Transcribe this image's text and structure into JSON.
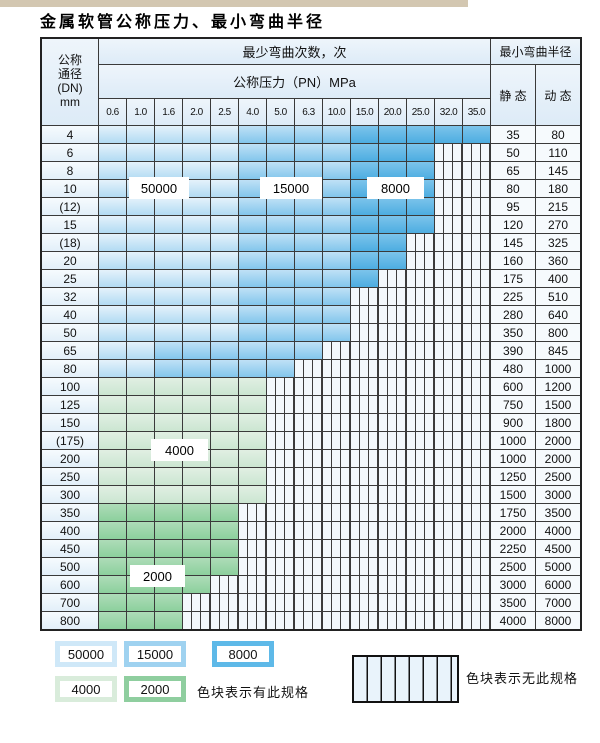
{
  "page_title": "金属软管公称压力、最小弯曲半径",
  "table": {
    "dn_header_lines": [
      "公称",
      "通径",
      "(DN)",
      "mm"
    ],
    "cycles_header": "最少弯曲次数，次",
    "pn_header": "公称压力（PN）MPa",
    "radius_header": "最小弯曲半径",
    "static_header": "静 态",
    "dynamic_header": "动 态",
    "pressures": [
      "0.6",
      "1.0",
      "1.6",
      "2.0",
      "2.5",
      "4.0",
      "5.0",
      "6.3",
      "10.0",
      "15.0",
      "20.0",
      "25.0",
      "32.0",
      "35.0"
    ],
    "cell_code_meaning": {
      "L": "50000次",
      "M": "15000次",
      "D": "8000次",
      "G": "4000次",
      "E": "2000次",
      "X": "无此规格"
    },
    "rows": [
      {
        "dn": "4",
        "cells": "LLLLLMMMMDDDDD",
        "static": "35",
        "dynamic": "80"
      },
      {
        "dn": "6",
        "cells": "LLLLLMMMMDDDXX",
        "static": "50",
        "dynamic": "110"
      },
      {
        "dn": "8",
        "cells": "LLLLLMMMMDDDXX",
        "static": "65",
        "dynamic": "145"
      },
      {
        "dn": "10",
        "cells": "LLLLLMMMMDDDXX",
        "static": "80",
        "dynamic": "180"
      },
      {
        "dn": "(12)",
        "cells": "LLLLLMMMMDDDXX",
        "static": "95",
        "dynamic": "215"
      },
      {
        "dn": "15",
        "cells": "LLLLLMMMMDDDXX",
        "static": "120",
        "dynamic": "270"
      },
      {
        "dn": "(18)",
        "cells": "LLLLLMMMMDDXXX",
        "static": "145",
        "dynamic": "325"
      },
      {
        "dn": "20",
        "cells": "LLLLLMMMMDDXXX",
        "static": "160",
        "dynamic": "360"
      },
      {
        "dn": "25",
        "cells": "LLLLLMMMMDXXXX",
        "static": "175",
        "dynamic": "400"
      },
      {
        "dn": "32",
        "cells": "LLLLLMMMMXXXXX",
        "static": "225",
        "dynamic": "510"
      },
      {
        "dn": "40",
        "cells": "LLLLLMMMMXXXXX",
        "static": "280",
        "dynamic": "640"
      },
      {
        "dn": "50",
        "cells": "LLLLLMMMMXXXXX",
        "static": "350",
        "dynamic": "800"
      },
      {
        "dn": "65",
        "cells": "LLMMMMMMXXXXXX",
        "static": "390",
        "dynamic": "845"
      },
      {
        "dn": "80",
        "cells": "LLMMMMMXXXXXXX",
        "static": "480",
        "dynamic": "1000"
      },
      {
        "dn": "100",
        "cells": "GGGGGGXXXXXXXX",
        "static": "600",
        "dynamic": "1200"
      },
      {
        "dn": "125",
        "cells": "GGGGGGXXXXXXXX",
        "static": "750",
        "dynamic": "1500"
      },
      {
        "dn": "150",
        "cells": "GGGGGGXXXXXXXX",
        "static": "900",
        "dynamic": "1800"
      },
      {
        "dn": "(175)",
        "cells": "GGGGGGXXXXXXXX",
        "static": "1000",
        "dynamic": "2000"
      },
      {
        "dn": "200",
        "cells": "GGGGGGXXXXXXXX",
        "static": "1000",
        "dynamic": "2000"
      },
      {
        "dn": "250",
        "cells": "GGGGGGXXXXXXXX",
        "static": "1250",
        "dynamic": "2500"
      },
      {
        "dn": "300",
        "cells": "GGGGGGXXXXXXXX",
        "static": "1500",
        "dynamic": "3000"
      },
      {
        "dn": "350",
        "cells": "EEEEEXXXXXXXXX",
        "static": "1750",
        "dynamic": "3500"
      },
      {
        "dn": "400",
        "cells": "EEEEEXXXXXXXXX",
        "static": "2000",
        "dynamic": "4000"
      },
      {
        "dn": "450",
        "cells": "EEEEEXXXXXXXXX",
        "static": "2250",
        "dynamic": "4500"
      },
      {
        "dn": "500",
        "cells": "EEEEEXXXXXXXXX",
        "static": "2500",
        "dynamic": "5000"
      },
      {
        "dn": "600",
        "cells": "EEEEXXXXXXXXXX",
        "static": "3000",
        "dynamic": "6000"
      },
      {
        "dn": "700",
        "cells": "EEEXXXXXXXXXXX",
        "static": "3500",
        "dynamic": "7000"
      },
      {
        "dn": "800",
        "cells": "EEEXXXXXXXXXXX",
        "static": "4000",
        "dynamic": "8000"
      }
    ]
  },
  "overlay_labels": {
    "l50000": "50000",
    "l15000": "15000",
    "l8000": "8000",
    "l4000": "4000",
    "l2000": "2000"
  },
  "legend": {
    "swatches": [
      {
        "label": "50000",
        "color": "#cfe8f8"
      },
      {
        "label": "15000",
        "color": "#9fd2f0"
      },
      {
        "label": "8000",
        "color": "#5eb9e8"
      },
      {
        "label": "4000",
        "color": "#d9ecdb"
      },
      {
        "label": "2000",
        "color": "#8fce9f"
      }
    ],
    "has_spec_text": "色块表示有此规格",
    "no_spec_text": "色块表示无此规格"
  },
  "colors": {
    "cycle_50000": "#b2dbf3",
    "cycle_15000": "#83c6ec",
    "cycle_8000": "#4dade1",
    "cycle_4000": "#cbe6d1",
    "cycle_2000": "#8cd09d",
    "no_spec_bg": "#f3f8fc",
    "grid_line": "#3a3a3a"
  }
}
